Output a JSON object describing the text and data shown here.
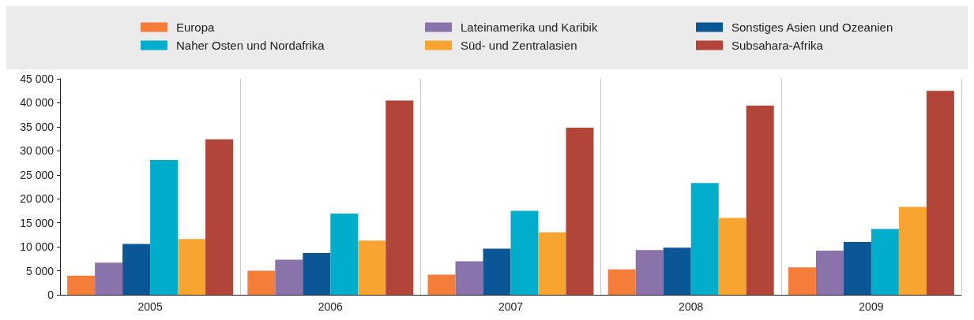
{
  "chart_data": {
    "type": "bar",
    "categories": [
      "2005",
      "2006",
      "2007",
      "2008",
      "2009"
    ],
    "series": [
      {
        "name": "Europa",
        "color": "#f47d3a",
        "values": [
          4000,
          5000,
          4200,
          5300,
          5700
        ]
      },
      {
        "name": "Lateinamerika und Karibik",
        "color": "#8a73ab",
        "values": [
          6700,
          7300,
          7000,
          9300,
          9200
        ]
      },
      {
        "name": "Sonstiges Asien und Ozeanien",
        "color": "#0b5694",
        "values": [
          10600,
          8700,
          9600,
          9800,
          11000
        ]
      },
      {
        "name": "Naher Osten und Nordafrika",
        "color": "#00aecb",
        "values": [
          28100,
          16900,
          17500,
          23300,
          13700
        ]
      },
      {
        "name": "Süd- und Zentralasien",
        "color": "#f8a431",
        "values": [
          11600,
          11300,
          13000,
          16000,
          18300
        ]
      },
      {
        "name": "Subsahara-Afrika",
        "color": "#b2443a",
        "values": [
          32400,
          40500,
          34800,
          39400,
          42500
        ]
      }
    ],
    "ylim": [
      0,
      45000
    ],
    "yticks": [
      {
        "value": 0,
        "label": "0"
      },
      {
        "value": 5000,
        "label": "5 000"
      },
      {
        "value": 10000,
        "label": "10 000"
      },
      {
        "value": 15000,
        "label": "15 000"
      },
      {
        "value": 20000,
        "label": "20 000"
      },
      {
        "value": 25000,
        "label": "25 000"
      },
      {
        "value": 30000,
        "label": "30 000"
      },
      {
        "value": 35000,
        "label": "35 000"
      },
      {
        "value": 40000,
        "label": "40 000"
      },
      {
        "value": 45000,
        "label": "45 000"
      }
    ],
    "grid": "x",
    "legend": "top"
  }
}
